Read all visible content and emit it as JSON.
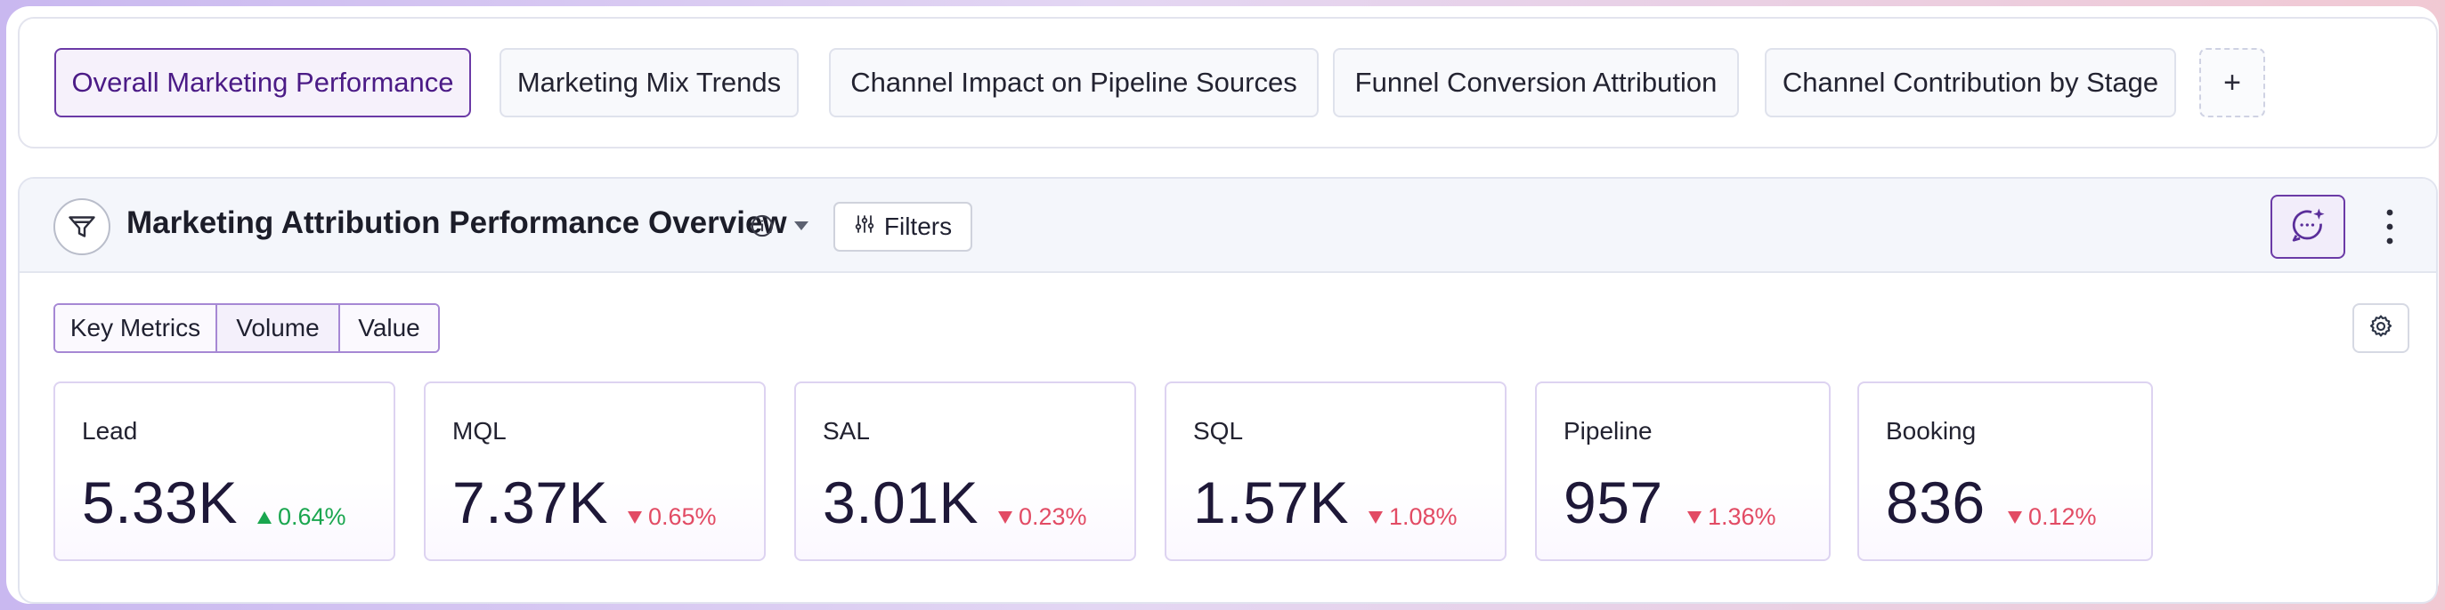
{
  "tabs": [
    {
      "label": "Overall Marketing Performance",
      "active": true
    },
    {
      "label": "Marketing Mix Trends",
      "active": false
    },
    {
      "label": "Channel Impact on Pipeline Sources",
      "active": false
    },
    {
      "label": "Funnel Conversion Attribution",
      "active": false
    },
    {
      "label": "Channel Contribution by Stage",
      "active": false
    }
  ],
  "add_tab_label": "+",
  "panel": {
    "title": "Marketing Attribution Performance Overview",
    "filters_label": "Filters",
    "segments": [
      "Key Metrics",
      "Volume",
      "Value"
    ],
    "selected_segment": "Volume"
  },
  "metrics": [
    {
      "label": "Lead",
      "value": "5.33K",
      "delta": "0.64%",
      "direction": "up"
    },
    {
      "label": "MQL",
      "value": "7.37K",
      "delta": "0.65%",
      "direction": "down"
    },
    {
      "label": "SAL",
      "value": "3.01K",
      "delta": "0.23%",
      "direction": "down"
    },
    {
      "label": "SQL",
      "value": "1.57K",
      "delta": "1.08%",
      "direction": "down"
    },
    {
      "label": "Pipeline",
      "value": "957",
      "delta": "1.36%",
      "direction": "down"
    },
    {
      "label": "Booking",
      "value": "836",
      "delta": "0.12%",
      "direction": "down"
    }
  ],
  "icons": {
    "header": "funnel-icon",
    "info": "info-icon",
    "caret": "caret-down-icon",
    "filters": "sliders-icon",
    "ai_chat": "sparkle-chat-icon",
    "more": "kebab-icon",
    "settings": "gear-icon"
  },
  "colors": {
    "accent": "#6b3aa6",
    "positive": "#1aa64f",
    "negative": "#e24b64"
  }
}
